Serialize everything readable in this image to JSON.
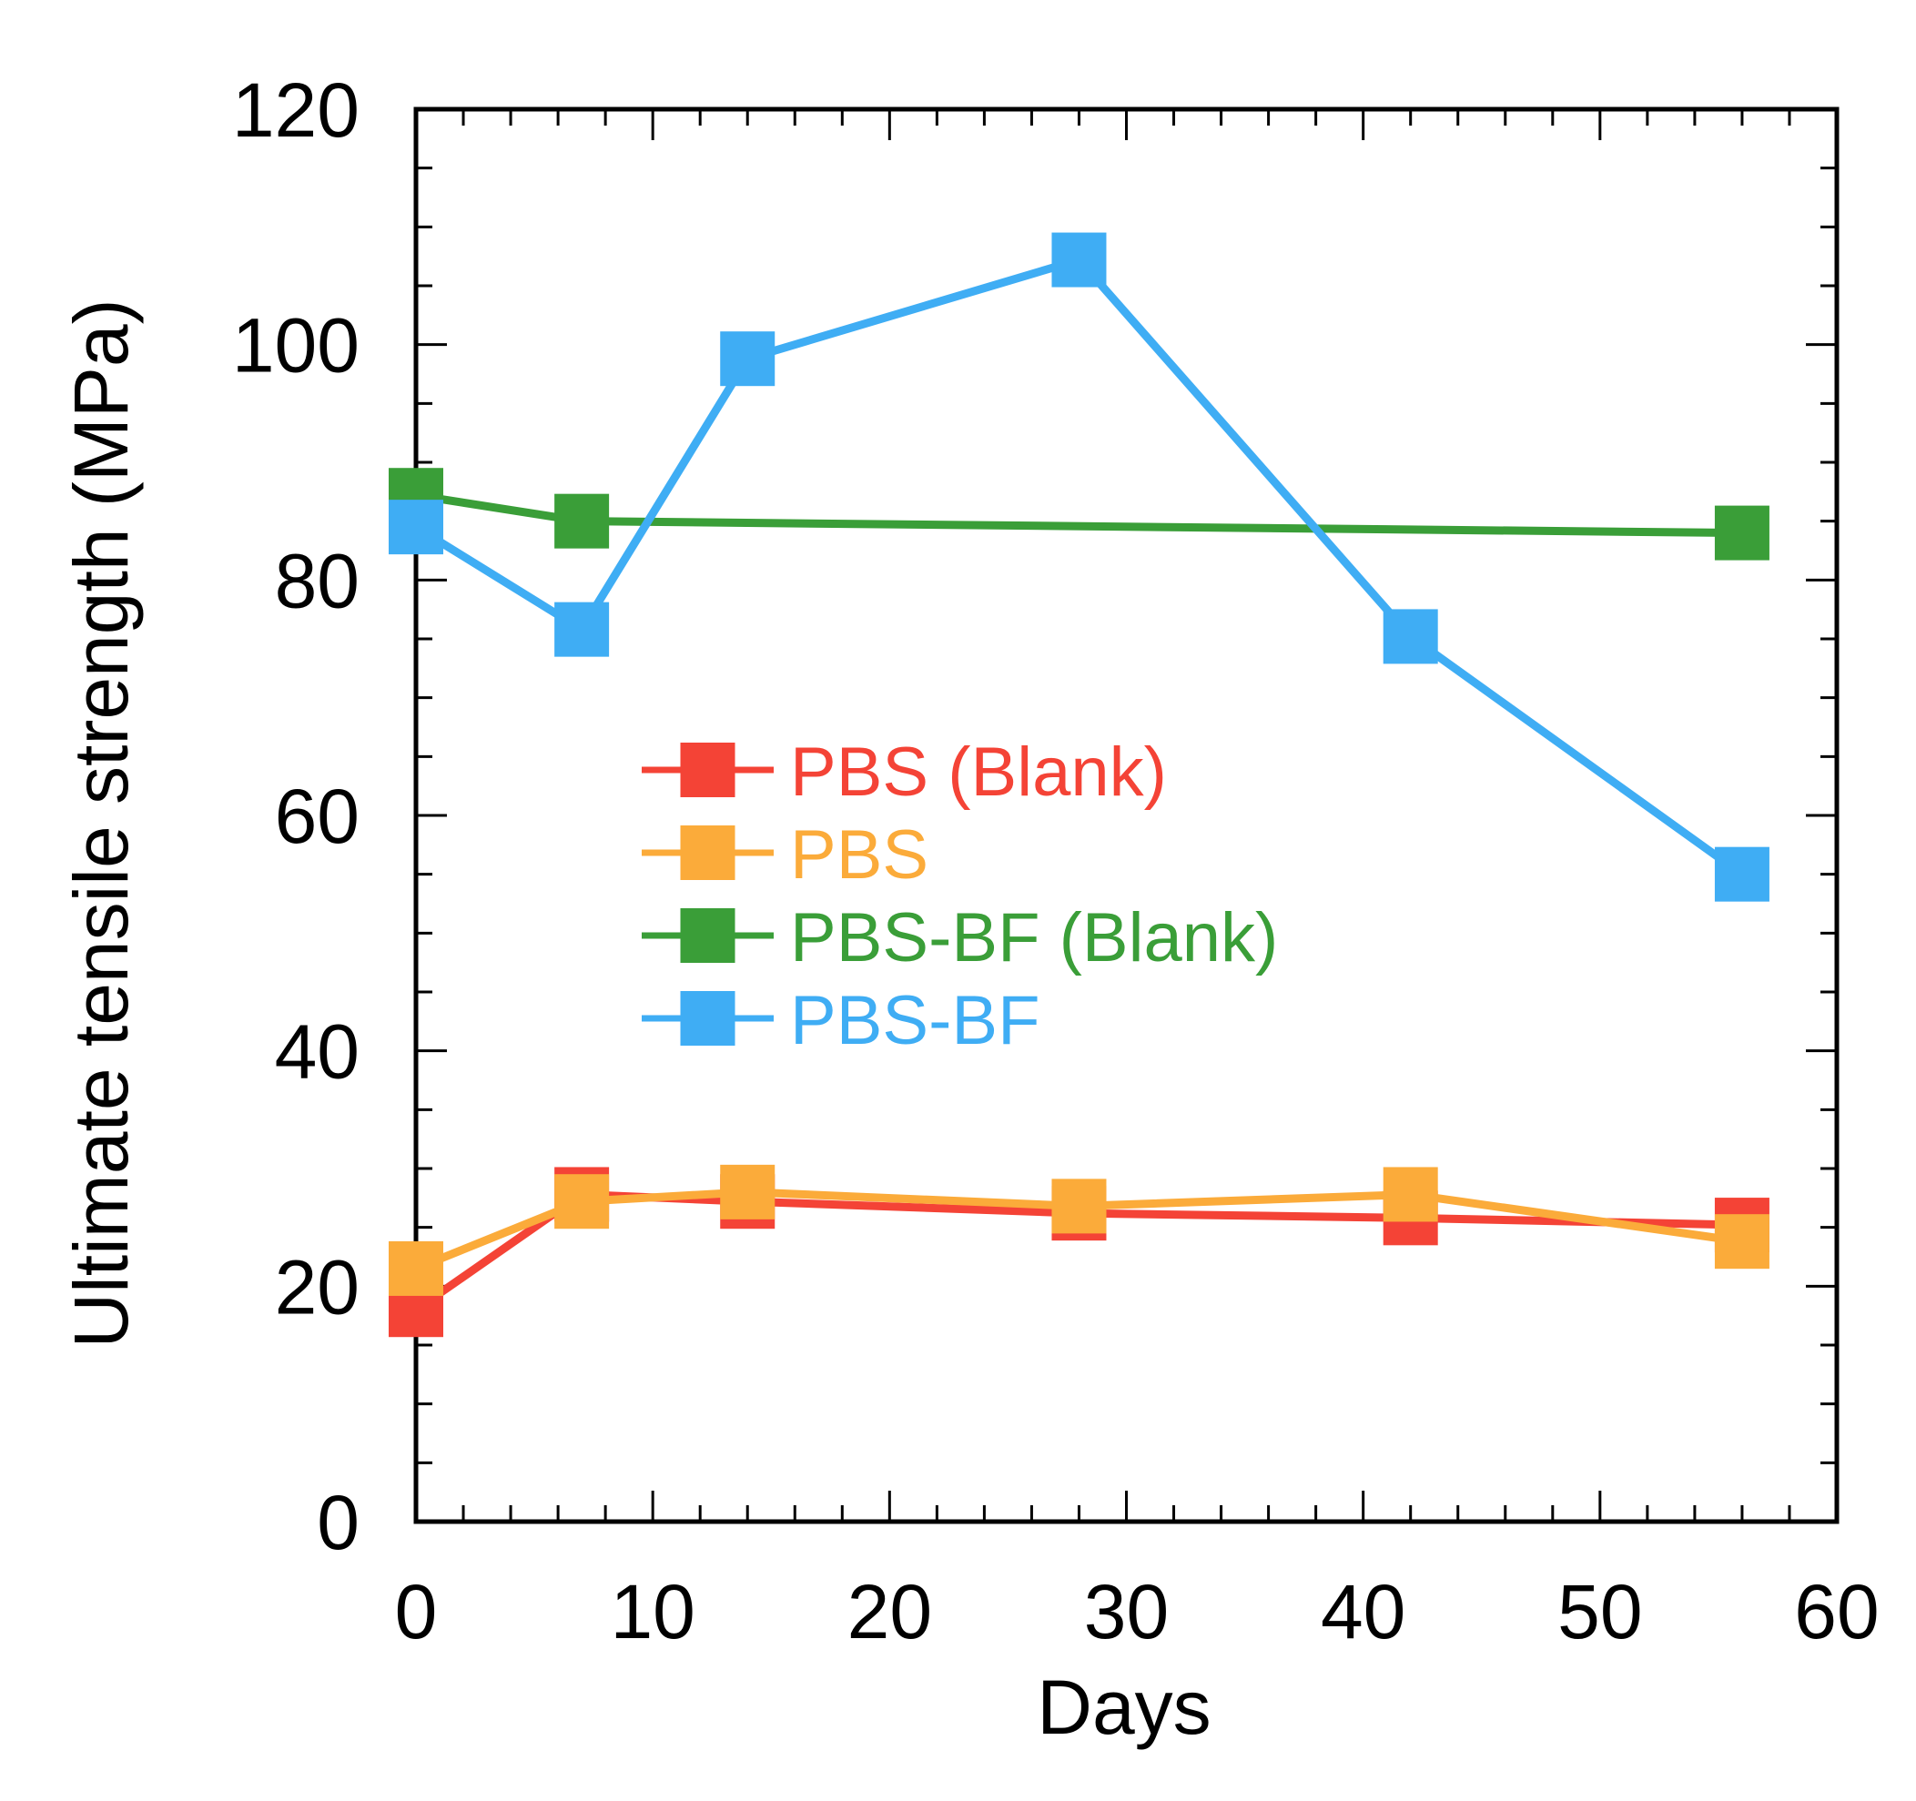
{
  "chart_data": {
    "type": "line",
    "title": "",
    "xlabel": "Days",
    "ylabel": "Ultimate tensile strength (MPa)",
    "xlim": [
      0,
      60
    ],
    "ylim": [
      0,
      120
    ],
    "x_ticks": [
      0,
      10,
      20,
      30,
      40,
      50,
      60
    ],
    "y_ticks": [
      0,
      20,
      40,
      60,
      80,
      100,
      120
    ],
    "x_minor_step": 2,
    "y_minor_step": 5,
    "grid": false,
    "legend_position": "center-left",
    "series": [
      {
        "name": "PBS (Blank)",
        "color": "#f44336",
        "x": [
          0,
          7,
          14,
          28,
          42,
          56
        ],
        "values": [
          18.0,
          27.8,
          27.2,
          26.2,
          25.8,
          25.2
        ]
      },
      {
        "name": "PBS",
        "color": "#fbab3a",
        "x": [
          0,
          7,
          14,
          28,
          42,
          56
        ],
        "values": [
          21.5,
          27.2,
          28.0,
          26.8,
          27.8,
          23.8
        ]
      },
      {
        "name": "PBS-BF (Blank)",
        "color": "#3a9e38",
        "x": [
          0,
          7,
          56
        ],
        "values": [
          87.2,
          85.0,
          84.0
        ]
      },
      {
        "name": "PBS-BF",
        "color": "#3fadf4",
        "x": [
          0,
          7,
          14,
          28,
          42,
          56
        ],
        "values": [
          84.5,
          75.8,
          98.8,
          107.2,
          75.2,
          55.0
        ]
      }
    ]
  }
}
